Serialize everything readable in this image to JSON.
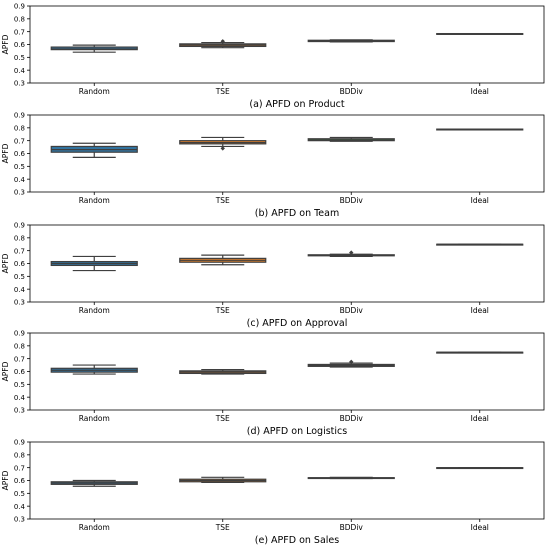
{
  "chart_data": [
    {
      "type": "box",
      "title": "(a) APFD on Product",
      "ylabel": "APFD",
      "ylim": [
        0.3,
        0.9
      ],
      "yticks": [
        "0.3",
        "0.4",
        "0.5",
        "0.6",
        "0.7",
        "0.8",
        "0.9"
      ],
      "categories": [
        "Random",
        "TSE",
        "BDDiv",
        "Ideal"
      ],
      "boxes": [
        {
          "category": "Random",
          "whislo": 0.54,
          "q1": 0.56,
          "median": 0.565,
          "q3": 0.58,
          "whishi": 0.595,
          "fliers": []
        },
        {
          "category": "TSE",
          "whislo": 0.575,
          "q1": 0.585,
          "median": 0.595,
          "q3": 0.605,
          "whishi": 0.615,
          "fliers": [
            0.625
          ]
        },
        {
          "category": "BDDiv",
          "whislo": 0.62,
          "q1": 0.623,
          "median": 0.628,
          "q3": 0.633,
          "whishi": 0.636,
          "fliers": []
        },
        {
          "category": "Ideal",
          "whislo": 0.685,
          "q1": 0.685,
          "median": 0.685,
          "q3": 0.685,
          "whishi": 0.685,
          "fliers": []
        }
      ]
    },
    {
      "type": "box",
      "title": "(b) APFD on Team",
      "ylabel": "APFD",
      "ylim": [
        0.3,
        0.9
      ],
      "yticks": [
        "0.3",
        "0.4",
        "0.5",
        "0.6",
        "0.7",
        "0.8",
        "0.9"
      ],
      "categories": [
        "Random",
        "TSE",
        "BDDiv",
        "Ideal"
      ],
      "boxes": [
        {
          "category": "Random",
          "whislo": 0.57,
          "q1": 0.61,
          "median": 0.63,
          "q3": 0.655,
          "whishi": 0.68,
          "fliers": []
        },
        {
          "category": "TSE",
          "whislo": 0.655,
          "q1": 0.675,
          "median": 0.685,
          "q3": 0.7,
          "whishi": 0.725,
          "fliers": [
            0.64
          ]
        },
        {
          "category": "BDDiv",
          "whislo": 0.695,
          "q1": 0.7,
          "median": 0.705,
          "q3": 0.715,
          "whishi": 0.725,
          "fliers": []
        },
        {
          "category": "Ideal",
          "whislo": 0.79,
          "q1": 0.79,
          "median": 0.79,
          "q3": 0.79,
          "whishi": 0.79,
          "fliers": []
        }
      ]
    },
    {
      "type": "box",
      "title": "(c) APFD on Approval",
      "ylabel": "APFD",
      "ylim": [
        0.3,
        0.9
      ],
      "yticks": [
        "0.3",
        "0.4",
        "0.5",
        "0.6",
        "0.7",
        "0.8",
        "0.9"
      ],
      "categories": [
        "Random",
        "TSE",
        "BDDiv",
        "Ideal"
      ],
      "boxes": [
        {
          "category": "Random",
          "whislo": 0.545,
          "q1": 0.585,
          "median": 0.6,
          "q3": 0.615,
          "whishi": 0.655,
          "fliers": []
        },
        {
          "category": "TSE",
          "whislo": 0.59,
          "q1": 0.61,
          "median": 0.625,
          "q3": 0.64,
          "whishi": 0.665,
          "fliers": []
        },
        {
          "category": "BDDiv",
          "whislo": 0.655,
          "q1": 0.66,
          "median": 0.665,
          "q3": 0.668,
          "whishi": 0.672,
          "fliers": [
            0.685
          ]
        },
        {
          "category": "Ideal",
          "whislo": 0.75,
          "q1": 0.75,
          "median": 0.75,
          "q3": 0.75,
          "whishi": 0.75,
          "fliers": []
        }
      ]
    },
    {
      "type": "box",
      "title": "(d) APFD on Logistics",
      "ylabel": "APFD",
      "ylim": [
        0.3,
        0.9
      ],
      "yticks": [
        "0.3",
        "0.4",
        "0.5",
        "0.6",
        "0.7",
        "0.8",
        "0.9"
      ],
      "categories": [
        "Random",
        "TSE",
        "BDDiv",
        "Ideal"
      ],
      "boxes": [
        {
          "category": "Random",
          "whislo": 0.58,
          "q1": 0.595,
          "median": 0.61,
          "q3": 0.625,
          "whishi": 0.65,
          "fliers": []
        },
        {
          "category": "TSE",
          "whislo": 0.58,
          "q1": 0.585,
          "median": 0.595,
          "q3": 0.605,
          "whishi": 0.615,
          "fliers": []
        },
        {
          "category": "BDDiv",
          "whislo": 0.635,
          "q1": 0.64,
          "median": 0.648,
          "q3": 0.655,
          "whishi": 0.665,
          "fliers": [
            0.675
          ]
        },
        {
          "category": "Ideal",
          "whislo": 0.75,
          "q1": 0.75,
          "median": 0.75,
          "q3": 0.75,
          "whishi": 0.75,
          "fliers": []
        }
      ]
    },
    {
      "type": "box",
      "title": "(e) APFD on Sales",
      "ylabel": "APFD",
      "ylim": [
        0.3,
        0.9
      ],
      "yticks": [
        "0.3",
        "0.4",
        "0.5",
        "0.6",
        "0.7",
        "0.8",
        "0.9"
      ],
      "categories": [
        "Random",
        "TSE",
        "BDDiv",
        "Ideal"
      ],
      "boxes": [
        {
          "category": "Random",
          "whislo": 0.555,
          "q1": 0.57,
          "median": 0.58,
          "q3": 0.59,
          "whishi": 0.6,
          "fliers": []
        },
        {
          "category": "TSE",
          "whislo": 0.585,
          "q1": 0.59,
          "median": 0.6,
          "q3": 0.61,
          "whishi": 0.625,
          "fliers": []
        },
        {
          "category": "BDDiv",
          "whislo": 0.615,
          "q1": 0.617,
          "median": 0.62,
          "q3": 0.622,
          "whishi": 0.625,
          "fliers": []
        },
        {
          "category": "Ideal",
          "whislo": 0.7,
          "q1": 0.7,
          "median": 0.7,
          "q3": 0.7,
          "whishi": 0.7,
          "fliers": []
        }
      ]
    }
  ],
  "colors": {
    "Random": "#3274a1",
    "TSE": "#e1812c",
    "BDDiv": "#3a923a",
    "Ideal": "#c03d3e",
    "line": "#3f3f3f"
  }
}
